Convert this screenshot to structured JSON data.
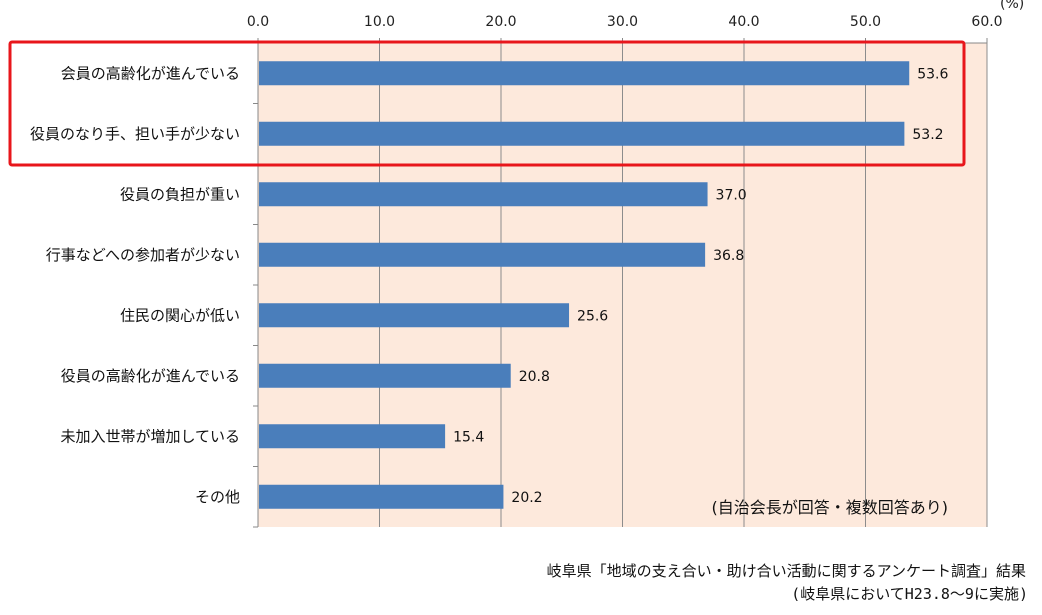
{
  "chart_data": {
    "type": "bar",
    "orientation": "horizontal",
    "unit_label": "(%)",
    "categories": [
      "会員の高齢化が進んでいる",
      "役員のなり手、担い手が少ない",
      "役員の負担が重い",
      "行事などへの参加者が少ない",
      "住民の関心が低い",
      "役員の高齢化が進んでいる",
      "未加入世帯が増加している",
      "その他"
    ],
    "values": [
      53.6,
      53.2,
      37.0,
      36.8,
      25.6,
      20.8,
      15.4,
      20.2
    ],
    "value_labels": [
      "53.6",
      "53.2",
      "37.0",
      "36.8",
      "25.6",
      "20.8",
      "15.4",
      "20.2"
    ],
    "xlim": [
      0,
      60
    ],
    "ticks": [
      "0.0",
      "10.0",
      "20.0",
      "30.0",
      "40.0",
      "50.0",
      "60.0"
    ],
    "note": "(自治会長が回答・複数回答あり)",
    "highlight": {
      "categories": [
        0,
        1
      ],
      "color": "#e8161b"
    },
    "colors": {
      "bar": "#4a7ebb",
      "plot_bg": "#fde9dc",
      "grid": "#8c8c8c"
    }
  },
  "footer": {
    "line1": "岐阜県「地域の支え合い・助け合い活動に関するアンケート調査」結果",
    "line2": "(岐阜県においてH23.8～9に実施)"
  }
}
